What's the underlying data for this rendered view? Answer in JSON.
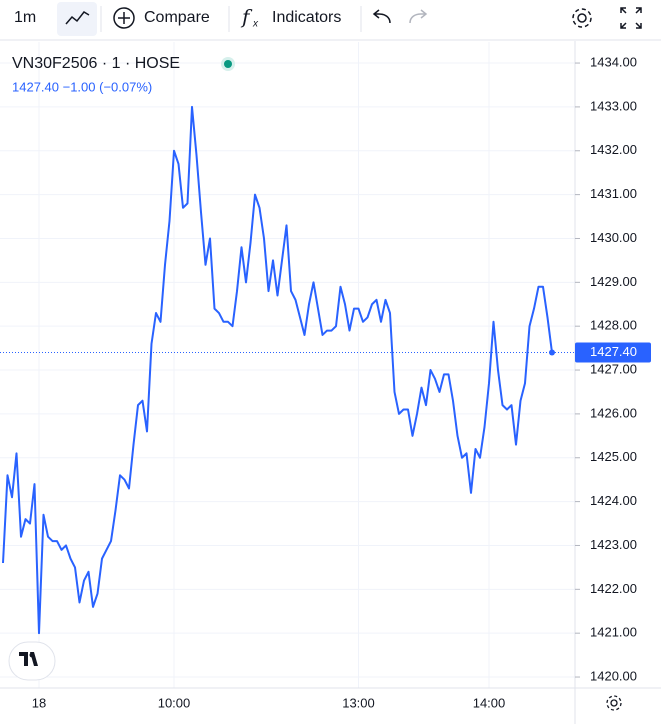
{
  "toolbar": {
    "interval": "1m",
    "compare": "Compare",
    "indicators": "Indicators"
  },
  "chart_data": {
    "type": "line",
    "title": "VN30F2506 · 1 · HOSE",
    "subtitle": "1427.40 −1.00 (−0.07%)",
    "last_price": {
      "value": 1427.4,
      "label": "1427.40"
    },
    "categories": [
      null,
      null,
      null,
      null,
      null,
      null,
      null,
      null,
      "18",
      null,
      null,
      null,
      null,
      null,
      null,
      null,
      null,
      null,
      null,
      null,
      null,
      null,
      null,
      null,
      null,
      null,
      null,
      null,
      null,
      null,
      null,
      null,
      null,
      null,
      null,
      null,
      null,
      null,
      "10:00",
      null,
      null,
      null,
      null,
      null,
      null,
      null,
      null,
      null,
      null,
      null,
      null,
      null,
      null,
      null,
      null,
      null,
      null,
      null,
      null,
      null,
      null,
      null,
      null,
      null,
      null,
      null,
      null,
      null,
      null,
      null,
      null,
      null,
      null,
      null,
      null,
      null,
      null,
      null,
      null,
      "13:00",
      null,
      null,
      null,
      null,
      null,
      null,
      null,
      null,
      null,
      null,
      null,
      null,
      null,
      null,
      null,
      null,
      null,
      null,
      null,
      null,
      null,
      null,
      null,
      null,
      null,
      null,
      null,
      null,
      "14:00",
      null,
      null,
      null,
      null,
      null,
      null,
      null,
      null,
      null,
      null,
      null,
      null,
      null,
      null
    ],
    "series": [
      {
        "color": "#2962ff",
        "values": [
          1422.6,
          1424.6,
          1424.1,
          1425.1,
          1423.2,
          1423.6,
          1423.5,
          1424.4,
          1421.0,
          1423.7,
          1423.2,
          1423.1,
          1423.1,
          1422.9,
          1423.0,
          1422.7,
          1422.5,
          1421.7,
          1422.2,
          1422.4,
          1421.6,
          1421.9,
          1422.7,
          1422.9,
          1423.1,
          1423.8,
          1424.6,
          1424.5,
          1424.3,
          1425.3,
          1426.2,
          1426.3,
          1425.6,
          1427.6,
          1428.3,
          1428.1,
          1429.4,
          1430.4,
          1432.0,
          1431.7,
          1430.7,
          1430.8,
          1433.0,
          1431.9,
          1430.6,
          1429.4,
          1430.0,
          1428.4,
          1428.3,
          1428.1,
          1428.1,
          1428.0,
          1428.8,
          1429.8,
          1429.0,
          1429.9,
          1431.0,
          1430.7,
          1430.0,
          1428.8,
          1429.5,
          1428.7,
          1429.5,
          1430.3,
          1428.8,
          1428.6,
          1428.2,
          1427.8,
          1428.5,
          1429.0,
          1428.4,
          1427.8,
          1427.9,
          1427.9,
          1428.0,
          1428.9,
          1428.5,
          1427.9,
          1428.4,
          1428.4,
          1428.1,
          1428.2,
          1428.5,
          1428.6,
          1428.1,
          1428.6,
          1428.3,
          1426.5,
          1426.0,
          1426.1,
          1426.1,
          1425.5,
          1426.0,
          1426.6,
          1426.2,
          1427.0,
          1426.8,
          1426.5,
          1426.9,
          1426.9,
          1426.3,
          1425.5,
          1425.0,
          1425.1,
          1424.2,
          1425.2,
          1425.0,
          1425.7,
          1426.7,
          1428.1,
          1427.0,
          1426.2,
          1426.1,
          1426.2,
          1425.3,
          1426.3,
          1426.7,
          1428.0,
          1428.4,
          1428.9,
          1428.9,
          1428.2,
          1427.4
        ]
      }
    ],
    "ylim": [
      1419.75,
      1434.48
    ],
    "yticks": [
      {
        "value": 1420,
        "label": "1420.00"
      },
      {
        "value": 1421,
        "label": "1421.00"
      },
      {
        "value": 1422,
        "label": "1422.00"
      },
      {
        "value": 1423,
        "label": "1423.00"
      },
      {
        "value": 1424,
        "label": "1424.00"
      },
      {
        "value": 1425,
        "label": "1425.00"
      },
      {
        "value": 1426,
        "label": "1426.00"
      },
      {
        "value": 1427,
        "label": "1427.00"
      },
      {
        "value": 1428,
        "label": "1428.00"
      },
      {
        "value": 1429,
        "label": "1429.00"
      },
      {
        "value": 1430,
        "label": "1430.00"
      },
      {
        "value": 1431,
        "label": "1431.00"
      },
      {
        "value": 1432,
        "label": "1432.00"
      },
      {
        "value": 1433,
        "label": "1433.00"
      },
      {
        "value": 1434,
        "label": "1434.00"
      }
    ],
    "grid": true
  }
}
